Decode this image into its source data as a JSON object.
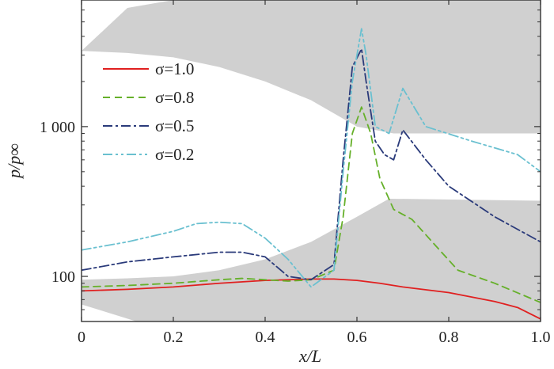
{
  "chart_data": {
    "type": "line",
    "xlabel": "x/L",
    "ylabel": "p/p∞",
    "xlim": [
      0,
      1
    ],
    "ylim": [
      50,
      7000
    ],
    "yscale": "log",
    "x_ticks": [
      0,
      0.2,
      0.4,
      0.6,
      0.8,
      1.0
    ],
    "x_tick_labels": [
      "0",
      "0.2",
      "0.4",
      "0.6",
      "0.8",
      "1.0"
    ],
    "y_ticks": [
      100,
      1000
    ],
    "y_tick_labels": [
      "100",
      "1 000"
    ],
    "grid": false,
    "legend_position": "top-left",
    "shaded_regions": [
      {
        "color": "#d0d0d0",
        "points": [
          [
            0,
            3200
          ],
          [
            0.1,
            6200
          ],
          [
            0.2,
            7000
          ],
          [
            1,
            7000
          ],
          [
            1,
            900
          ],
          [
            0.95,
            900
          ],
          [
            0.68,
            900
          ],
          [
            0.6,
            1000
          ],
          [
            0.5,
            1500
          ],
          [
            0.4,
            2000
          ],
          [
            0.3,
            2500
          ],
          [
            0.2,
            2900
          ],
          [
            0.1,
            3100
          ],
          [
            0,
            3200
          ]
        ]
      },
      {
        "color": "#d0d0d0",
        "points": [
          [
            0,
            95
          ],
          [
            0.1,
            97
          ],
          [
            0.2,
            100
          ],
          [
            0.3,
            110
          ],
          [
            0.4,
            130
          ],
          [
            0.5,
            170
          ],
          [
            0.6,
            250
          ],
          [
            0.67,
            330
          ],
          [
            1,
            320
          ],
          [
            1,
            50
          ],
          [
            0.12,
            50
          ],
          [
            0,
            65
          ],
          [
            0,
            95
          ]
        ]
      }
    ],
    "series": [
      {
        "name": "σ=1.0",
        "color": "#e02020",
        "dash": "",
        "points": [
          [
            0,
            80
          ],
          [
            0.1,
            82
          ],
          [
            0.2,
            85
          ],
          [
            0.3,
            90
          ],
          [
            0.4,
            94
          ],
          [
            0.5,
            96
          ],
          [
            0.55,
            96
          ],
          [
            0.6,
            94
          ],
          [
            0.65,
            90
          ],
          [
            0.7,
            85
          ],
          [
            0.8,
            78
          ],
          [
            0.9,
            68
          ],
          [
            0.95,
            62
          ],
          [
            1.0,
            52
          ]
        ]
      },
      {
        "name": "σ=0.8",
        "color": "#66b02a",
        "dash": "9 6",
        "points": [
          [
            0,
            85
          ],
          [
            0.1,
            87
          ],
          [
            0.2,
            90
          ],
          [
            0.3,
            95
          ],
          [
            0.35,
            97
          ],
          [
            0.4,
            95
          ],
          [
            0.45,
            93
          ],
          [
            0.5,
            95
          ],
          [
            0.55,
            110
          ],
          [
            0.57,
            250
          ],
          [
            0.59,
            900
          ],
          [
            0.61,
            1350
          ],
          [
            0.63,
            900
          ],
          [
            0.65,
            450
          ],
          [
            0.68,
            280
          ],
          [
            0.72,
            240
          ],
          [
            0.78,
            150
          ],
          [
            0.82,
            110
          ],
          [
            0.9,
            90
          ],
          [
            1.0,
            67
          ]
        ]
      },
      {
        "name": "σ=0.5",
        "color": "#2a3a7a",
        "dash": "12 4 3 4",
        "points": [
          [
            0,
            110
          ],
          [
            0.1,
            125
          ],
          [
            0.2,
            135
          ],
          [
            0.3,
            145
          ],
          [
            0.35,
            145
          ],
          [
            0.4,
            135
          ],
          [
            0.45,
            100
          ],
          [
            0.5,
            95
          ],
          [
            0.55,
            120
          ],
          [
            0.57,
            600
          ],
          [
            0.59,
            2500
          ],
          [
            0.61,
            3300
          ],
          [
            0.62,
            2000
          ],
          [
            0.64,
            800
          ],
          [
            0.66,
            650
          ],
          [
            0.68,
            600
          ],
          [
            0.7,
            950
          ],
          [
            0.75,
            600
          ],
          [
            0.8,
            400
          ],
          [
            0.9,
            250
          ],
          [
            1.0,
            170
          ]
        ]
      },
      {
        "name": "σ=0.2",
        "color": "#6ac0d0",
        "dash": "12 4 3 4 3 4",
        "points": [
          [
            0,
            150
          ],
          [
            0.1,
            170
          ],
          [
            0.2,
            200
          ],
          [
            0.25,
            225
          ],
          [
            0.3,
            230
          ],
          [
            0.35,
            225
          ],
          [
            0.4,
            180
          ],
          [
            0.45,
            130
          ],
          [
            0.5,
            85
          ],
          [
            0.55,
            110
          ],
          [
            0.57,
            500
          ],
          [
            0.59,
            2000
          ],
          [
            0.61,
            4500
          ],
          [
            0.62,
            3000
          ],
          [
            0.64,
            1000
          ],
          [
            0.67,
            900
          ],
          [
            0.7,
            1800
          ],
          [
            0.75,
            1000
          ],
          [
            0.85,
            800
          ],
          [
            0.95,
            650
          ],
          [
            1.0,
            500
          ]
        ]
      }
    ]
  }
}
